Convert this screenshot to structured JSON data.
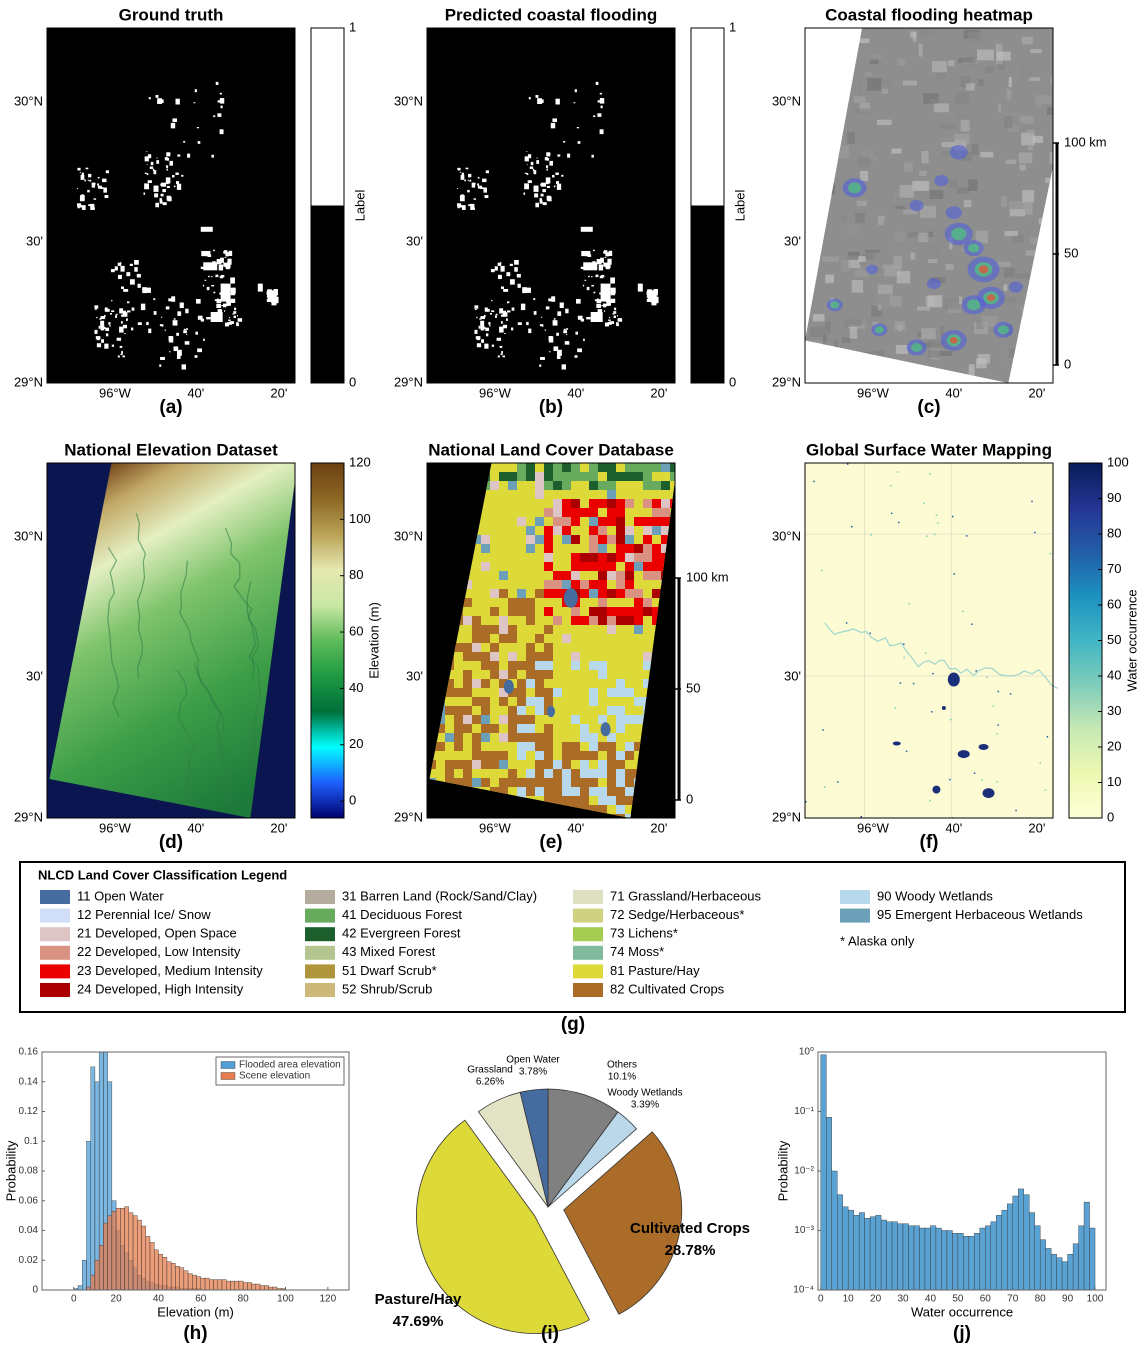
{
  "chart_data": [
    {
      "type": "map",
      "title": "Ground truth",
      "panel_label": "(a)",
      "yticklabels": [
        "29°N",
        "30'",
        "30°N"
      ],
      "xticklabels": [
        "96°W",
        "40'",
        "20'"
      ],
      "colorbar": {
        "label": "Label",
        "colors": [
          "#000000",
          "#ffffff"
        ],
        "discrete": true,
        "lim": [
          0,
          1
        ],
        "ticks": [
          0,
          1
        ]
      }
    },
    {
      "type": "map",
      "title": "Predicted coastal flooding",
      "panel_label": "(b)",
      "yticklabels": [
        "29°N",
        "30'",
        "30°N"
      ],
      "xticklabels": [
        "96°W",
        "40'",
        "20'"
      ],
      "colorbar": {
        "label": "Label",
        "colors": [
          "#000000",
          "#ffffff"
        ],
        "discrete": true,
        "lim": [
          0,
          1
        ],
        "ticks": [
          0,
          1
        ]
      }
    },
    {
      "type": "map",
      "title": "Coastal flooding heatmap",
      "panel_label": "(c)",
      "yticklabels": [
        "29°N",
        "30'",
        "30°N"
      ],
      "xticklabels": [
        "96°W",
        "40'",
        "20'"
      ],
      "scalebar": {
        "lim": [
          0,
          100
        ],
        "ticks": [
          0,
          50,
          {
            "value": 100,
            "label": "100 km"
          }
        ]
      }
    },
    {
      "type": "map",
      "title": "National Elevation Dataset",
      "panel_label": "(d)",
      "yticklabels": [
        "29°N",
        "30'",
        "30°N"
      ],
      "xticklabels": [
        "96°W",
        "40'",
        "20'"
      ],
      "colorbar": {
        "label": "Elevation (m)",
        "colors": [
          "#00006e",
          "#1e60ff",
          "#00ffff",
          "#00703a",
          "#1e9a42",
          "#5fbb5a",
          "#c9e8a4",
          "#e6e8b0",
          "#b9a256",
          "#8c6624",
          "#6b4012"
        ],
        "discrete": false,
        "lim": [
          -6,
          120
        ],
        "ticks": [
          0,
          20,
          40,
          60,
          80,
          100,
          120
        ]
      }
    },
    {
      "type": "map",
      "title": "National Land Cover Database",
      "panel_label": "(e)",
      "yticklabels": [
        "29°N",
        "30'",
        "30°N"
      ],
      "xticklabels": [
        "96°W",
        "40'",
        "20'"
      ],
      "scalebar": {
        "lim": [
          0,
          100
        ],
        "ticks": [
          0,
          50,
          {
            "value": 100,
            "label": "100 km"
          }
        ]
      }
    },
    {
      "type": "map",
      "title": "Global Surface Water Mapping",
      "panel_label": "(f)",
      "yticklabels": [
        "29°N",
        "30'",
        "30°N"
      ],
      "xticklabels": [
        "96°W",
        "40'",
        "20'"
      ],
      "colorbar": {
        "label": "Water occurrence",
        "colors": [
          "#ffffd9",
          "#edf8b1",
          "#c7e9b4",
          "#7fcdbb",
          "#41b6c4",
          "#1d91c0",
          "#225ea8",
          "#253494",
          "#081d58"
        ],
        "discrete": false,
        "lim": [
          0,
          100
        ],
        "ticks": [
          0,
          10,
          20,
          30,
          40,
          50,
          60,
          70,
          80,
          90,
          100
        ]
      }
    },
    {
      "type": "histogram",
      "panel_label": "(h)",
      "xlabel": "Elevation (m)",
      "ylabel": "Probability",
      "legend": "upper right",
      "bins": [
        0,
        2,
        4,
        6,
        8,
        10,
        12,
        14,
        16,
        18,
        20,
        22,
        24,
        26,
        28,
        30,
        32,
        34,
        36,
        38,
        40,
        42,
        44,
        46,
        48,
        50,
        52,
        54,
        56,
        58,
        60,
        62,
        64,
        66,
        68,
        70,
        72,
        74,
        76,
        78,
        80,
        82,
        84,
        86,
        88,
        90,
        92,
        94,
        96,
        98,
        100
      ],
      "series": [
        {
          "name": "Flooded area elevation",
          "color": "#4f9fd6",
          "values": [
            0.001,
            0.003,
            0.02,
            0.1,
            0.15,
            0.14,
            0.16,
            0.16,
            0.14,
            0.06,
            0.04,
            0.03,
            0.025,
            0.02,
            0.015,
            0.01,
            0.008,
            0.006,
            0.005,
            0.004,
            0.003,
            0.003,
            0.002,
            0.002,
            0.002,
            0.001,
            0.001,
            0.001,
            0.001,
            0.001,
            0,
            0,
            0,
            0,
            0,
            0,
            0,
            0,
            0,
            0,
            0,
            0,
            0,
            0,
            0,
            0,
            0,
            0,
            0,
            0
          ]
        },
        {
          "name": "Scene elevation",
          "color": "#e47c4e",
          "values": [
            0,
            0,
            0,
            0.002,
            0.01,
            0.02,
            0.03,
            0.045,
            0.05,
            0.053,
            0.055,
            0.055,
            0.056,
            0.052,
            0.05,
            0.047,
            0.043,
            0.036,
            0.032,
            0.027,
            0.024,
            0.022,
            0.019,
            0.018,
            0.016,
            0.015,
            0.013,
            0.011,
            0.01,
            0.009,
            0.008,
            0.008,
            0.007,
            0.007,
            0.007,
            0.007,
            0.006,
            0.006,
            0.006,
            0.006,
            0.005,
            0.005,
            0.004,
            0.004,
            0.003,
            0.003,
            0.002,
            0.002,
            0.001,
            0.001
          ]
        }
      ],
      "xlim": [
        -15,
        130
      ],
      "xticks": [
        0,
        20,
        40,
        60,
        80,
        100,
        120
      ],
      "ylim": [
        0,
        0.16
      ],
      "yticks": [
        0,
        0.02,
        0.04,
        0.06,
        0.08,
        0.1,
        0.12,
        0.14,
        0.16
      ]
    },
    {
      "type": "pie",
      "panel_label": "(i)",
      "categories": [
        "Others",
        "Woody Wetlands",
        "Cultivated Crops",
        "Pasture/Hay",
        "Grassland",
        "Open Water"
      ],
      "values": [
        10.1,
        3.39,
        28.78,
        47.69,
        6.26,
        3.78
      ],
      "value_labels": [
        "10.1%",
        "3.39%",
        "28.78%",
        "47.69%",
        "6.26%",
        "3.78%"
      ],
      "colors": [
        "#808080",
        "#bad8ea",
        "#aa6c28",
        "#dcd939",
        "#e2e2c5",
        "#466b9f"
      ],
      "explode": [
        false,
        false,
        true,
        true,
        false,
        false
      ]
    },
    {
      "type": "histogram",
      "panel_label": "(j)",
      "xlabel": "Water occurrence",
      "ylabel": "Probability",
      "yscale": "log",
      "bins": [
        0,
        2,
        4,
        6,
        8,
        10,
        12,
        14,
        16,
        18,
        20,
        22,
        24,
        26,
        28,
        30,
        32,
        34,
        36,
        38,
        40,
        42,
        44,
        46,
        48,
        50,
        52,
        54,
        56,
        58,
        60,
        62,
        64,
        66,
        68,
        70,
        72,
        74,
        76,
        78,
        80,
        82,
        84,
        86,
        88,
        90,
        92,
        94,
        96,
        98,
        100
      ],
      "series": [
        {
          "name": null,
          "color": "#5aa2d3",
          "values": [
            0.9,
            0.08,
            0.01,
            0.004,
            0.0025,
            0.0022,
            0.0018,
            0.002,
            0.0016,
            0.0017,
            0.0018,
            0.0015,
            0.0014,
            0.0014,
            0.0013,
            0.0013,
            0.0012,
            0.0012,
            0.0011,
            0.0011,
            0.0012,
            0.0011,
            0.001,
            0.001,
            0.0009,
            0.0009,
            0.0008,
            0.0008,
            0.0009,
            0.0011,
            0.0012,
            0.0014,
            0.0018,
            0.0022,
            0.0028,
            0.0038,
            0.005,
            0.004,
            0.002,
            0.0012,
            0.0007,
            0.0005,
            0.0004,
            0.00035,
            0.0003,
            0.0004,
            0.0006,
            0.0012,
            0.003,
            0.0011
          ]
        }
      ],
      "xlim": [
        -1,
        104
      ],
      "xticks": [
        0,
        10,
        20,
        30,
        40,
        50,
        60,
        70,
        80,
        90,
        100
      ],
      "ylim": [
        0.0001,
        1
      ],
      "yticks": [
        {
          "value": 0.0001,
          "label": "10⁻⁴"
        },
        {
          "value": 0.001,
          "label": "10⁻³"
        },
        {
          "value": 0.01,
          "label": "10⁻²"
        },
        {
          "value": 0.1,
          "label": "10⁻¹"
        },
        {
          "value": 1,
          "label": "10⁰"
        }
      ]
    }
  ],
  "land_cover_legend": {
    "title": "NLCD Land Cover Classification Legend",
    "panel_label": "(g)",
    "note": "* Alaska only",
    "entries": [
      {
        "label": "11 Open Water",
        "color": "#466b9f"
      },
      {
        "label": "12 Perennial Ice/ Snow",
        "color": "#d1def8"
      },
      {
        "label": "21 Developed, Open Space",
        "color": "#dec5c5"
      },
      {
        "label": "22 Developed, Low Intensity",
        "color": "#d99282"
      },
      {
        "label": "23 Developed, Medium Intensity",
        "color": "#eb0000"
      },
      {
        "label": "24 Developed, High Intensity",
        "color": "#ab0000"
      },
      {
        "label": "31 Barren Land (Rock/Sand/Clay)",
        "color": "#b3ac9f"
      },
      {
        "label": "41 Deciduous Forest",
        "color": "#68ab5f"
      },
      {
        "label": "42 Evergreen Forest",
        "color": "#1c5f2c"
      },
      {
        "label": "43 Mixed Forest",
        "color": "#b5c58f"
      },
      {
        "label": "51 Dwarf Scrub*",
        "color": "#af963c"
      },
      {
        "label": "52 Shrub/Scrub",
        "color": "#ccb879"
      },
      {
        "label": "71 Grassland/Herbaceous",
        "color": "#dfdfc2"
      },
      {
        "label": "72 Sedge/Herbaceous*",
        "color": "#d1d182"
      },
      {
        "label": "73 Lichens*",
        "color": "#a3cc51"
      },
      {
        "label": "74 Moss*",
        "color": "#82ba9e"
      },
      {
        "label": "81 Pasture/Hay",
        "color": "#dcd939"
      },
      {
        "label": "82 Cultivated Crops",
        "color": "#ab6c28"
      },
      {
        "label": "90 Woody Wetlands",
        "color": "#b8d9eb"
      },
      {
        "label": "95 Emergent Herbaceous Wetlands",
        "color": "#6c9fb8"
      }
    ]
  }
}
